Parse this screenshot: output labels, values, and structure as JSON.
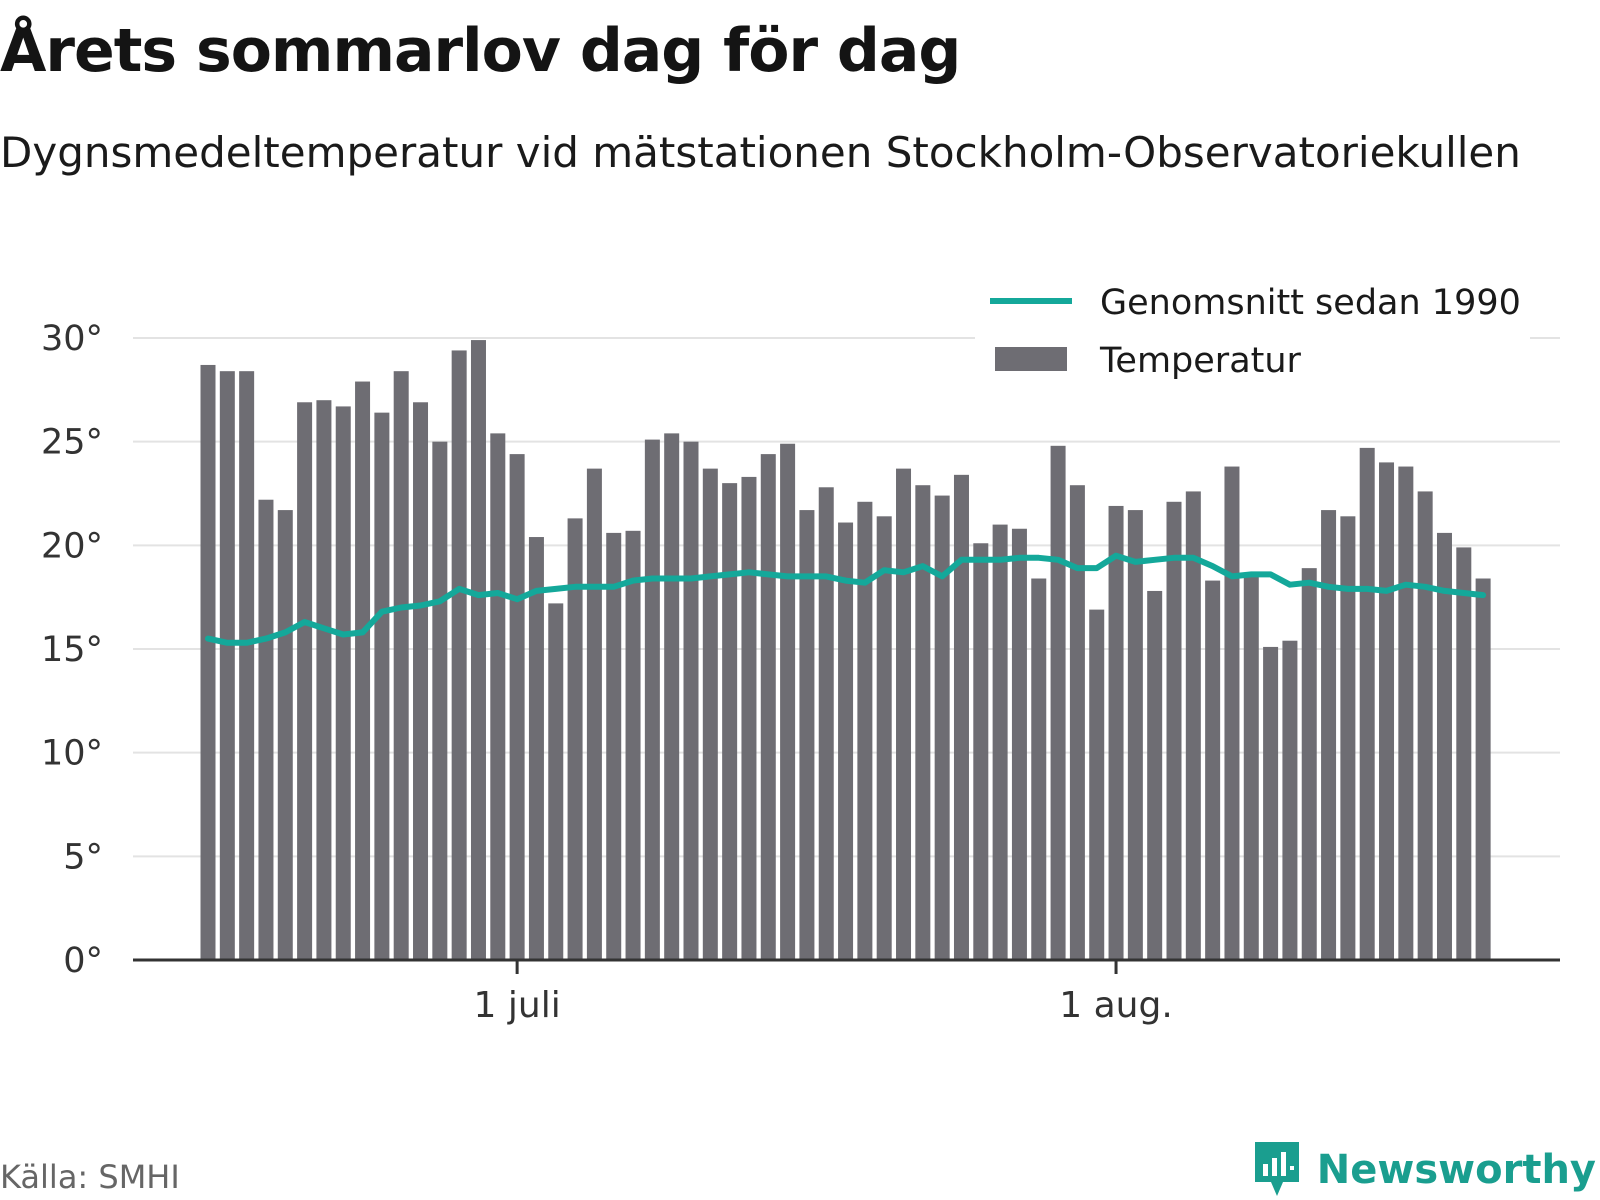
{
  "title": "Årets sommarlov dag för dag",
  "subtitle": "Dygnsmedeltemperatur vid mätstationen Stockholm-Observatoriekullen",
  "source": "Källa: SMHI",
  "brand": {
    "name": "Newsworthy",
    "icon": "newsworthy-logo-icon",
    "color": "#1a9e8f"
  },
  "colors": {
    "bar": "#6e6d73",
    "line": "#14a89a",
    "grid": "#e3e3e3",
    "axis": "#333333"
  },
  "chart_data": {
    "type": "bar",
    "x_start": "2018-06-15",
    "x_ticks": [
      {
        "label": "1 juli",
        "date": "2018-07-01"
      },
      {
        "label": "1 aug.",
        "date": "2018-08-01"
      }
    ],
    "y_ticks": [
      "0°",
      "5°",
      "10°",
      "15°",
      "20°",
      "25°",
      "30°"
    ],
    "ylim": [
      0,
      30
    ],
    "grid": true,
    "legend": {
      "position": "top-right",
      "entries": [
        "Genomsnitt sedan 1990",
        "Temperatur"
      ]
    },
    "series": [
      {
        "name": "Temperatur",
        "type": "bar",
        "values": [
          28.7,
          28.4,
          28.4,
          22.2,
          21.7,
          26.9,
          27.0,
          26.7,
          27.9,
          26.4,
          28.4,
          26.9,
          25.0,
          29.4,
          29.9,
          25.4,
          24.4,
          20.4,
          17.2,
          21.3,
          23.7,
          20.6,
          20.7,
          25.1,
          25.4,
          25.0,
          23.7,
          23.0,
          23.3,
          24.4,
          24.9,
          21.7,
          22.8,
          21.1,
          22.1,
          21.4,
          23.7,
          22.9,
          22.4,
          23.4,
          20.1,
          21.0,
          20.8,
          18.4,
          24.8,
          22.9,
          16.9,
          21.9,
          21.7,
          17.8,
          22.1,
          22.6,
          18.3,
          23.8,
          18.6,
          15.1,
          15.4,
          18.9,
          21.7,
          21.4,
          24.7,
          24.0,
          23.8,
          22.6,
          20.6,
          19.9,
          18.4
        ]
      },
      {
        "name": "Genomsnitt sedan 1990",
        "type": "line",
        "values": [
          15.5,
          15.3,
          15.3,
          15.5,
          15.8,
          16.3,
          16.0,
          15.7,
          15.8,
          16.8,
          17.0,
          17.1,
          17.3,
          17.9,
          17.6,
          17.7,
          17.4,
          17.8,
          17.9,
          18.0,
          18.0,
          18.0,
          18.3,
          18.4,
          18.4,
          18.4,
          18.5,
          18.6,
          18.7,
          18.6,
          18.5,
          18.5,
          18.5,
          18.3,
          18.2,
          18.8,
          18.7,
          19.0,
          18.5,
          19.3,
          19.3,
          19.3,
          19.4,
          19.4,
          19.3,
          18.9,
          18.9,
          19.5,
          19.2,
          19.3,
          19.4,
          19.4,
          19.0,
          18.5,
          18.6,
          18.6,
          18.1,
          18.2,
          18.0,
          17.9,
          17.9,
          17.8,
          18.1,
          18.0,
          17.8,
          17.7,
          17.6
        ]
      }
    ]
  }
}
